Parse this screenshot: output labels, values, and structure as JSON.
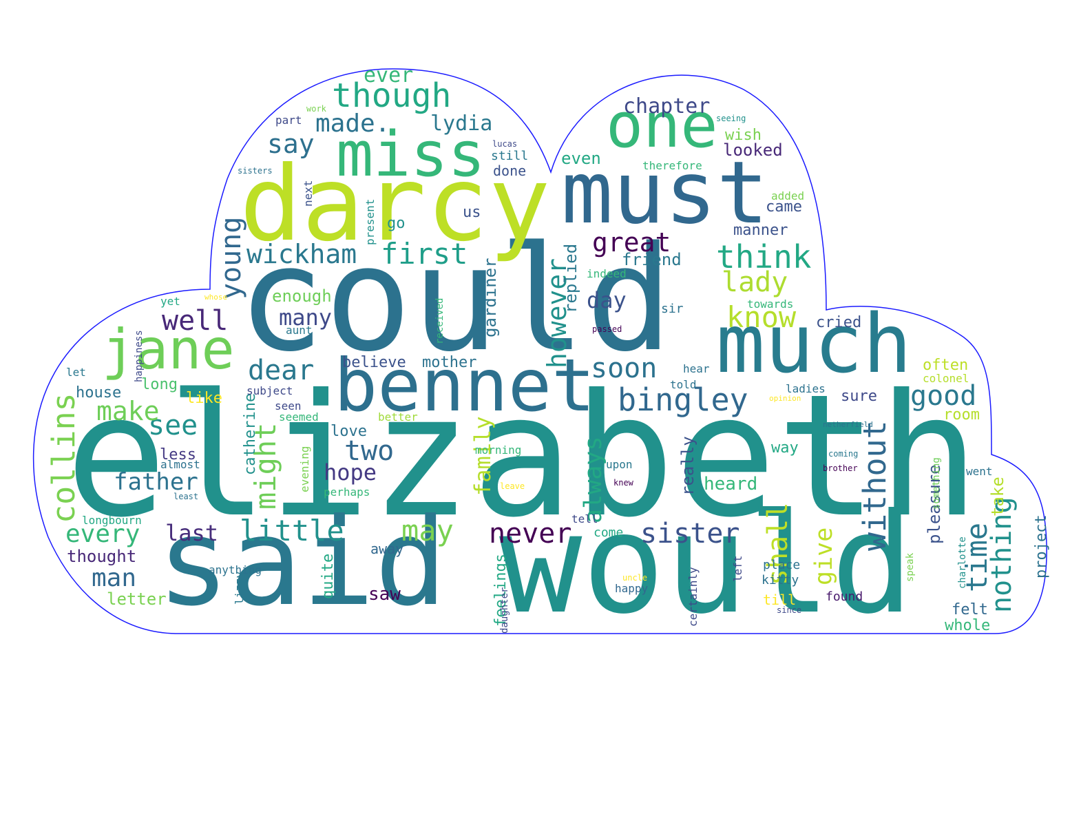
{
  "wordcloud": {
    "outline_color": "#1a1aff",
    "background": "#ffffff",
    "palette": "viridis",
    "words": [
      {
        "id": "elizabeth",
        "text": "elizabeth",
        "color": "#21918c"
      },
      {
        "id": "could",
        "text": "could",
        "color": "#2c728e"
      },
      {
        "id": "would",
        "text": "would",
        "color": "#21918c"
      },
      {
        "id": "said",
        "text": "said",
        "color": "#2a788e"
      },
      {
        "id": "darcy",
        "text": "darcy",
        "color": "#bddf26"
      },
      {
        "id": "must",
        "text": "must",
        "color": "#31688e"
      },
      {
        "id": "much",
        "text": "much",
        "color": "#287c8e"
      },
      {
        "id": "bennet",
        "text": "bennet",
        "color": "#2d708e"
      },
      {
        "id": "miss",
        "text": "miss",
        "color": "#35b779"
      },
      {
        "id": "one",
        "text": "one",
        "color": "#35b779"
      },
      {
        "id": "jane",
        "text": "jane",
        "color": "#6ece58"
      },
      {
        "id": "though",
        "text": "though",
        "color": "#22a884"
      },
      {
        "id": "bingley",
        "text": "bingley",
        "color": "#31688e"
      },
      {
        "id": "think",
        "text": "think",
        "color": "#22a884"
      },
      {
        "id": "wickham",
        "text": "wickham",
        "color": "#2a788e"
      },
      {
        "id": "first",
        "text": "first",
        "color": "#1f9e89"
      },
      {
        "id": "great",
        "text": "great",
        "color": "#440154"
      },
      {
        "id": "know",
        "text": "know",
        "color": "#b5de2b"
      },
      {
        "id": "lady",
        "text": "lady",
        "color": "#addc30"
      },
      {
        "id": "soon",
        "text": "soon",
        "color": "#2c728e"
      },
      {
        "id": "good",
        "text": "good",
        "color": "#2a788e"
      },
      {
        "id": "sister",
        "text": "sister",
        "color": "#3b528b"
      },
      {
        "id": "little",
        "text": "little",
        "color": "#21918c"
      },
      {
        "id": "never",
        "text": "never",
        "color": "#440154"
      },
      {
        "id": "collins",
        "text": "collins",
        "color": "#7ad151"
      },
      {
        "id": "time",
        "text": "time",
        "color": "#2a788e"
      },
      {
        "id": "nothing",
        "text": "nothing",
        "color": "#21918c"
      },
      {
        "id": "without",
        "text": "without",
        "color": "#31688e"
      },
      {
        "id": "shall",
        "text": "shall",
        "color": "#bddf26"
      },
      {
        "id": "may",
        "text": "may",
        "color": "#7ad151"
      },
      {
        "id": "might",
        "text": "might",
        "color": "#6ece58"
      },
      {
        "id": "dear",
        "text": "dear",
        "color": "#2a788e"
      },
      {
        "id": "see",
        "text": "see",
        "color": "#21918c"
      },
      {
        "id": "well",
        "text": "well",
        "color": "#482878"
      },
      {
        "id": "young",
        "text": "young",
        "color": "#31688e"
      },
      {
        "id": "say",
        "text": "say",
        "color": "#2d708e"
      },
      {
        "id": "made",
        "text": "made.",
        "color": "#2c728e"
      },
      {
        "id": "lydia",
        "text": "lydia",
        "color": "#2a788e"
      },
      {
        "id": "chapter",
        "text": "chapter",
        "color": "#3e4989"
      },
      {
        "id": "two",
        "text": "two",
        "color": "#31688e"
      },
      {
        "id": "hope",
        "text": "hope",
        "color": "#443983"
      },
      {
        "id": "father",
        "text": "father",
        "color": "#2c728e"
      },
      {
        "id": "make",
        "text": "make",
        "color": "#6ece58"
      },
      {
        "id": "every",
        "text": "every",
        "color": "#35b779"
      },
      {
        "id": "man",
        "text": "man",
        "color": "#31688e"
      },
      {
        "id": "last",
        "text": "last",
        "color": "#472d7b"
      },
      {
        "id": "however",
        "text": "however",
        "color": "#21918c"
      },
      {
        "id": "always",
        "text": "always",
        "color": "#22a884"
      },
      {
        "id": "day",
        "text": "day",
        "color": "#3b528b"
      },
      {
        "id": "many",
        "text": "many",
        "color": "#3e4989"
      },
      {
        "id": "enough",
        "text": "enough",
        "color": "#6ece58"
      },
      {
        "id": "ever",
        "text": "ever",
        "color": "#35b779"
      },
      {
        "id": "give",
        "text": "give",
        "color": "#bddf26"
      },
      {
        "id": "family",
        "text": "family",
        "color": "#b5de2b"
      },
      {
        "id": "replied",
        "text": "replied",
        "color": "#2a788e"
      },
      {
        "id": "friend",
        "text": "friend",
        "color": "#2a788e"
      },
      {
        "id": "looked",
        "text": "looked",
        "color": "#482878"
      },
      {
        "id": "wish",
        "text": "wish",
        "color": "#7ad151"
      },
      {
        "id": "even",
        "text": "even",
        "color": "#22a884"
      },
      {
        "id": "manner",
        "text": "manner",
        "color": "#3b528b"
      },
      {
        "id": "came",
        "text": "came",
        "color": "#3b528b"
      },
      {
        "id": "gardiner",
        "text": "gardiner",
        "color": "#2c728e"
      },
      {
        "id": "catherine",
        "text": "catherine",
        "color": "#21918c"
      },
      {
        "id": "believe",
        "text": "believe",
        "color": "#3b528b"
      },
      {
        "id": "mother",
        "text": "mother",
        "color": "#2c728e"
      },
      {
        "id": "cried",
        "text": "cried",
        "color": "#3b528b"
      },
      {
        "id": "often",
        "text": "often",
        "color": "#bddf26"
      },
      {
        "id": "heard",
        "text": "heard",
        "color": "#35b779"
      },
      {
        "id": "thought",
        "text": "thought",
        "color": "#482878"
      },
      {
        "id": "feelings",
        "text": "feelings",
        "color": "#22a884"
      },
      {
        "id": "quite",
        "text": "quite",
        "color": "#22a884"
      },
      {
        "id": "saw",
        "text": "saw",
        "color": "#440154"
      },
      {
        "id": "letter",
        "text": "letter",
        "color": "#7ad151"
      },
      {
        "id": "really",
        "text": "really",
        "color": "#3b528b"
      },
      {
        "id": "pleasure",
        "text": "pleasure",
        "color": "#3b528b"
      },
      {
        "id": "take",
        "text": "take",
        "color": "#b5de2b"
      },
      {
        "id": "project",
        "text": "project",
        "color": "#2c728e"
      },
      {
        "id": "felt",
        "text": "felt",
        "color": "#31688e"
      },
      {
        "id": "whole",
        "text": "whole",
        "color": "#35b779"
      },
      {
        "id": "house",
        "text": "house",
        "color": "#2c728e"
      },
      {
        "id": "long",
        "text": "long",
        "color": "#4ac16d"
      },
      {
        "id": "like",
        "text": "like",
        "color": "#fde725"
      },
      {
        "id": "less",
        "text": "less",
        "color": "#443983"
      },
      {
        "id": "love",
        "text": "love",
        "color": "#2c728e"
      },
      {
        "id": "way",
        "text": "way",
        "color": "#22a884"
      },
      {
        "id": "sure",
        "text": "sure",
        "color": "#3e4989"
      },
      {
        "id": "room",
        "text": "room",
        "color": "#b5de2b"
      },
      {
        "id": "go",
        "text": "go",
        "color": "#21918c"
      },
      {
        "id": "us",
        "text": "us",
        "color": "#3b528b"
      },
      {
        "id": "done",
        "text": "done",
        "color": "#3b528b"
      },
      {
        "id": "still",
        "text": "still",
        "color": "#2a788e"
      },
      {
        "id": "part",
        "text": "part",
        "color": "#3e4989"
      },
      {
        "id": "next",
        "text": "next",
        "color": "#3b528b"
      },
      {
        "id": "present",
        "text": "present",
        "color": "#21918c"
      },
      {
        "id": "indeed",
        "text": "indeed",
        "color": "#35b779"
      },
      {
        "id": "sir",
        "text": "sir",
        "color": "#2c728e"
      },
      {
        "id": "towards",
        "text": "towards",
        "color": "#35b779"
      },
      {
        "id": "added",
        "text": "added",
        "color": "#7ad151"
      },
      {
        "id": "therefore",
        "text": "therefore",
        "color": "#35b779"
      },
      {
        "id": "come",
        "text": "come",
        "color": "#22a884"
      },
      {
        "id": "away",
        "text": "away",
        "color": "#31688e"
      },
      {
        "id": "place",
        "text": "place",
        "color": "#2c728e"
      },
      {
        "id": "kitty",
        "text": "kitty",
        "color": "#2c728e"
      },
      {
        "id": "till",
        "text": "till",
        "color": "#fde725"
      },
      {
        "id": "found",
        "text": "found",
        "color": "#481a6c"
      },
      {
        "id": "happy",
        "text": "happy",
        "color": "#31688e"
      },
      {
        "id": "anything",
        "text": "anything",
        "color": "#2c728e"
      },
      {
        "id": "lizzy",
        "text": "lizzy",
        "color": "#2a788e"
      },
      {
        "id": "morning",
        "text": "morning",
        "color": "#35b779"
      },
      {
        "id": "upon",
        "text": "upon",
        "color": "#2a788e"
      },
      {
        "id": "evening",
        "text": "evening",
        "color": "#7ad151"
      },
      {
        "id": "perhaps",
        "text": "perhaps",
        "color": "#35b779"
      },
      {
        "id": "better",
        "text": "better",
        "color": "#a0da39"
      },
      {
        "id": "seemed",
        "text": "seemed",
        "color": "#35b779"
      },
      {
        "id": "seen",
        "text": "seen",
        "color": "#3e4989"
      },
      {
        "id": "subject",
        "text": "subject",
        "color": "#3e4989"
      },
      {
        "id": "almost",
        "text": "almost",
        "color": "#2c728e"
      },
      {
        "id": "yet",
        "text": "yet",
        "color": "#22a884"
      },
      {
        "id": "aunt",
        "text": "aunt",
        "color": "#2a788e"
      },
      {
        "id": "happiness",
        "text": "happiness",
        "color": "#3e4989"
      },
      {
        "id": "let",
        "text": "let",
        "color": "#2a788e"
      },
      {
        "id": "longbourn",
        "text": "longbourn",
        "color": "#22a884"
      },
      {
        "id": "received",
        "text": "received",
        "color": "#35b779"
      },
      {
        "id": "told",
        "text": "told",
        "color": "#2c728e"
      },
      {
        "id": "ladies",
        "text": "ladies",
        "color": "#2c728e"
      },
      {
        "id": "hear",
        "text": "hear",
        "color": "#2c728e"
      },
      {
        "id": "colonel",
        "text": "colonel",
        "color": "#b5de2b"
      },
      {
        "id": "went",
        "text": "went",
        "color": "#2c728e"
      },
      {
        "id": "something",
        "text": "something",
        "color": "#6ece58"
      },
      {
        "id": "charlotte",
        "text": "charlotte",
        "color": "#21918c"
      },
      {
        "id": "speak",
        "text": "speak",
        "color": "#7ad151"
      },
      {
        "id": "since",
        "text": "since",
        "color": "#3e4989"
      },
      {
        "id": "left",
        "text": "left",
        "color": "#3e4989"
      },
      {
        "id": "certainly",
        "text": "certainly",
        "color": "#3e4989"
      },
      {
        "id": "uncle",
        "text": "uncle",
        "color": "#fde725"
      },
      {
        "id": "daughter",
        "text": "daughter",
        "color": "#3e4989"
      },
      {
        "id": "tell",
        "text": "tell",
        "color": "#3e4989"
      },
      {
        "id": "leave",
        "text": "leave",
        "color": "#fde725"
      },
      {
        "id": "knew",
        "text": "knew",
        "color": "#440154"
      },
      {
        "id": "brother",
        "text": "brother",
        "color": "#440154"
      },
      {
        "id": "coming",
        "text": "coming",
        "color": "#2a788e"
      },
      {
        "id": "netherfield",
        "text": "netherfield",
        "color": "#2c728e"
      },
      {
        "id": "opinion",
        "text": "opinion",
        "color": "#fde725"
      },
      {
        "id": "passed",
        "text": "passed",
        "color": "#440154"
      },
      {
        "id": "whose",
        "text": "whose",
        "color": "#fde725"
      },
      {
        "id": "least",
        "text": "least",
        "color": "#2c728e"
      },
      {
        "id": "lucas",
        "text": "lucas",
        "color": "#3e4989"
      },
      {
        "id": "seeing",
        "text": "seeing",
        "color": "#21918c"
      },
      {
        "id": "work",
        "text": "work",
        "color": "#7ad151"
      },
      {
        "id": "sisters",
        "text": "sisters",
        "color": "#2c728e"
      }
    ]
  }
}
